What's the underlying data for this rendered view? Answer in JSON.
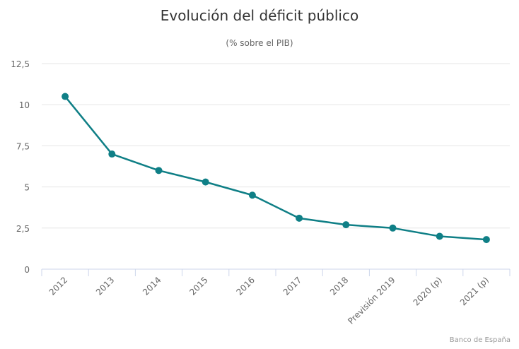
{
  "chart_data": {
    "type": "line",
    "title": "Evolución del déficit público",
    "subtitle": "(% sobre el PIB)",
    "categories": [
      "2012",
      "2013",
      "2014",
      "2015",
      "2016",
      "2017",
      "2018",
      "Previsión 2019",
      "2020 (p)",
      "2021 (p)"
    ],
    "values": [
      10.5,
      7.0,
      6.0,
      5.3,
      4.5,
      3.1,
      2.7,
      2.5,
      2.0,
      1.8
    ],
    "ylim": [
      0,
      12.5
    ],
    "yticks": [
      "0",
      "2,5",
      "5",
      "7,5",
      "10",
      "12,5"
    ],
    "grid": true,
    "legend": "none",
    "credit": "Banco de España",
    "colors": {
      "series": "#0f7f86",
      "grid": "#e6e6e6",
      "axis": "#ccd6eb",
      "text": "#666666",
      "title": "#333333"
    }
  }
}
